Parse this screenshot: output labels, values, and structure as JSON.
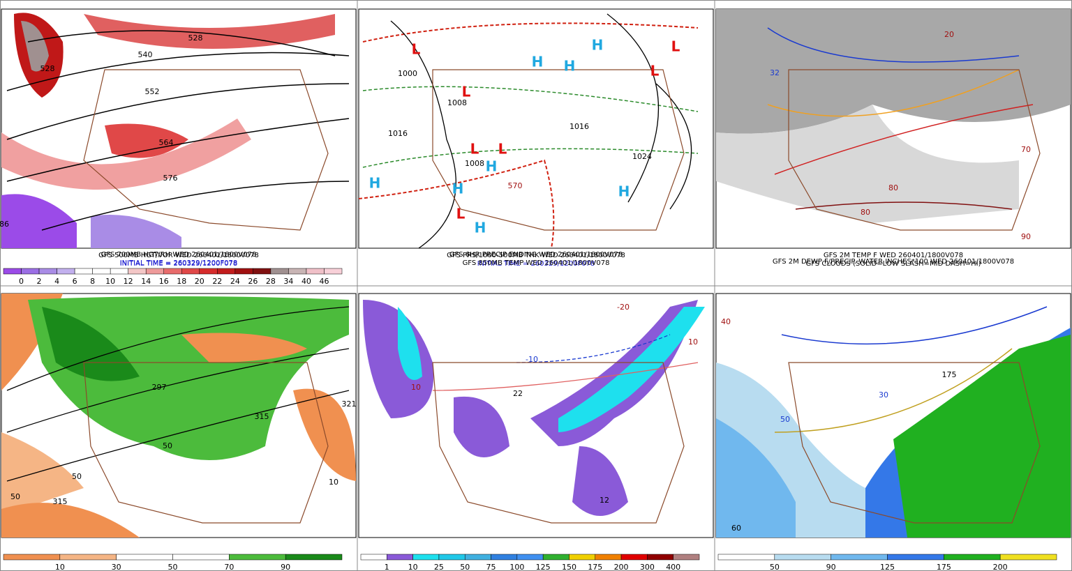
{
  "panels": [
    {
      "caption": [
        "GFS 500MB HGT/VOR WED 260401/1800V078",
        "INITIAL TIME = 260329/1200F078"
      ],
      "colorbar": {
        "labels": [
          0,
          2,
          4,
          6,
          8,
          10,
          12,
          14,
          16,
          18,
          20,
          22,
          24,
          26,
          28,
          34,
          40,
          46
        ],
        "colors": [
          "#9b4be8",
          "#9b6fe5",
          "#a98ce6",
          "#c2b0ee",
          "#ffffff",
          "#ffffff",
          "#ffffff",
          "#f4c7c7",
          "#ee9a9a",
          "#e86c6c",
          "#e04848",
          "#d62c2c",
          "#c21c1c",
          "#a01010",
          "#801010",
          "#a09090",
          "#c8b4b4",
          "#f0c0c8",
          "#f8d0d8"
        ]
      },
      "map_labels": [
        "528",
        "540",
        "552",
        "564",
        "576",
        "528",
        "86"
      ]
    },
    {
      "caption": [
        "GFS PRS/1000-500MB THK WED 260401/1800V078",
        "INITIAL TIME = 260329/1200F078"
      ],
      "map_labels": [
        "L",
        "L",
        "L",
        "L",
        "L",
        "L",
        "L",
        "H",
        "H",
        "H",
        "H",
        "H",
        "H",
        "H",
        "H",
        "1000",
        "1008",
        "1016",
        "1016",
        "1024",
        "1008",
        "570"
      ]
    },
    {
      "caption": [
        "GFS 2M TEMP F WED 260401/1800V078",
        "GFS CLOUDS (SOLID=LOW SLASH=MID DASH=HI)"
      ],
      "map_labels": [
        "32",
        "20",
        "80",
        "70",
        "90",
        "80"
      ]
    },
    {
      "caption": [
        "GFS 700MB HGT/RH WED 260401/1800V078",
        "INITIAL TIME = 260329/1200F078"
      ],
      "colorbar": {
        "labels": [
          10,
          30,
          50,
          70,
          90
        ],
        "colors": [
          "#f09050",
          "#f5b585",
          "#ffffff",
          "#ffffff",
          "#4cbb3c",
          "#1a8a1a"
        ]
      },
      "map_labels": [
        "50",
        "315",
        "50",
        "297",
        "315",
        "50",
        "321",
        "10"
      ]
    },
    {
      "caption": [
        "GFS 6HR PRECIP ENDING WED 260401/1800V078",
        "GFS 850MB TEMP WED 260401/1800V078"
      ],
      "colorbar": {
        "labels": [
          1,
          10,
          25,
          50,
          75,
          100,
          125,
          150,
          175,
          200,
          300,
          400
        ],
        "colors": [
          "#ffffff",
          "#8a5ad8",
          "#1ee0ee",
          "#20c8e8",
          "#40b0e0",
          "#3080e0",
          "#4090f0",
          "#30b030",
          "#f0d000",
          "#f08000",
          "#e00000",
          "#900000",
          "#b08080"
        ]
      },
      "map_labels": [
        "-10",
        "-20",
        "10",
        "22",
        "12",
        "10"
      ]
    },
    {
      "caption": [
        "GFS 2M DEWP F/PRECIP. WATER INCHES*100 WED 260401/1800V078"
      ],
      "colorbar": {
        "labels": [
          50,
          90,
          125,
          175,
          200
        ],
        "colors": [
          "#ffffff",
          "#b8dcf0",
          "#70b8ee",
          "#3478e8",
          "#20b020",
          "#f0e020"
        ]
      },
      "map_labels": [
        "30",
        "40",
        "60",
        "50",
        "175"
      ]
    }
  ]
}
